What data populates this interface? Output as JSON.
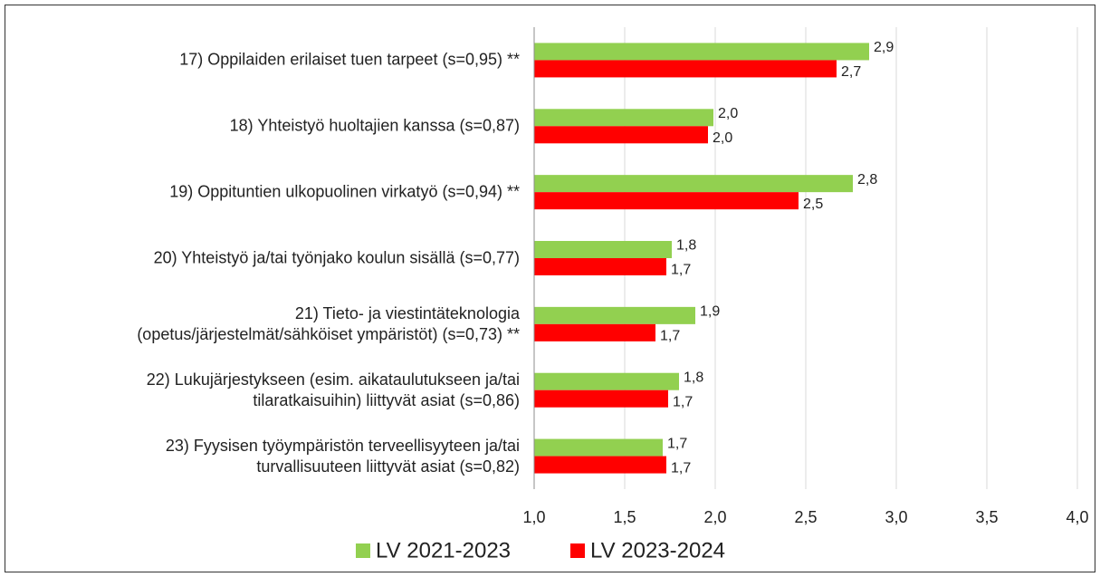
{
  "chart_data": {
    "type": "hbar",
    "categories": [
      "17) Oppilaiden erilaiset tuen tarpeet (s=0,95) **",
      "18) Yhteistyö huoltajien kanssa (s=0,87)",
      "19) Oppituntien ulkopuolinen virkatyö (s=0,94) **",
      "20) Yhteistyö ja/tai työnjako koulun sisällä (s=0,77)",
      "21) Tieto- ja viestintäteknologia\n(opetus/järjestelmät/sähköiset ympäristöt) (s=0,73) **",
      "22) Lukujärjestykseen (esim. aikataulutukseen ja/tai\ntilaratkaisuihin) liittyvät asiat (s=0,86)",
      "23) Fyysisen työympäristön terveellisyyteen ja/tai\nturvallisuuteen liittyvät asiat (s=0,82)"
    ],
    "series": [
      {
        "name": "LV 2021-2023",
        "color": "#92d050",
        "values": [
          2.85,
          1.99,
          2.76,
          1.76,
          1.89,
          1.8,
          1.71
        ],
        "value_labels": [
          "2,9",
          "2,0",
          "2,8",
          "1,8",
          "1,9",
          "1,8",
          "1,7"
        ]
      },
      {
        "name": "LV 2023-2024",
        "color": "#ff0000",
        "values": [
          2.67,
          1.96,
          2.46,
          1.73,
          1.67,
          1.74,
          1.73
        ],
        "value_labels": [
          "2,7",
          "2,0",
          "2,5",
          "1,7",
          "1,7",
          "1,7",
          "1,7"
        ]
      }
    ],
    "xlim": [
      1,
      4
    ],
    "xticks": [
      {
        "value": 1,
        "label": "1,0"
      },
      {
        "value": 1.5,
        "label": "1,5"
      },
      {
        "value": 2,
        "label": "2,0"
      },
      {
        "value": 2.5,
        "label": "2,5"
      },
      {
        "value": 3,
        "label": "3,0"
      },
      {
        "value": 3.5,
        "label": "3,5"
      },
      {
        "value": 4,
        "label": "4,0"
      }
    ],
    "grid": true
  }
}
